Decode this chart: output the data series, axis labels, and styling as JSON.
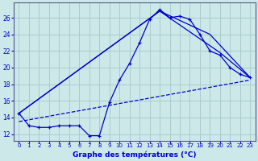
{
  "title": "Graphe des températures (°C)",
  "background_color": "#cce8e8",
  "grid_color": "#aacccc",
  "line_color": "#0000cc",
  "x_ticks": [
    0,
    1,
    2,
    3,
    4,
    5,
    6,
    7,
    8,
    9,
    10,
    11,
    12,
    13,
    14,
    15,
    16,
    17,
    18,
    19,
    20,
    21,
    22,
    23
  ],
  "y_ticks": [
    12,
    14,
    16,
    18,
    20,
    22,
    24,
    26
  ],
  "ylim": [
    11.2,
    27.8
  ],
  "xlim": [
    -0.5,
    23.5
  ],
  "line1_x": [
    0,
    1,
    2,
    3,
    4,
    5,
    6,
    7,
    8,
    9,
    10,
    11,
    12,
    13,
    14,
    15,
    16,
    17,
    18,
    19,
    20,
    21,
    22,
    23
  ],
  "line1_y": [
    14.5,
    13.0,
    12.8,
    12.8,
    13.0,
    13.0,
    13.0,
    11.8,
    11.8,
    15.8,
    18.5,
    20.5,
    23.0,
    25.8,
    27.0,
    26.0,
    26.2,
    25.8,
    24.0,
    22.0,
    21.5,
    20.0,
    19.2,
    18.8
  ],
  "line2_x": [
    0,
    14,
    19,
    23
  ],
  "line2_y": [
    14.5,
    26.8,
    24.0,
    18.8
  ],
  "line3_x": [
    0,
    14,
    20,
    23
  ],
  "line3_y": [
    14.5,
    26.8,
    21.8,
    18.8
  ],
  "trend_x": [
    0,
    23
  ],
  "trend_y": [
    13.5,
    18.5
  ]
}
